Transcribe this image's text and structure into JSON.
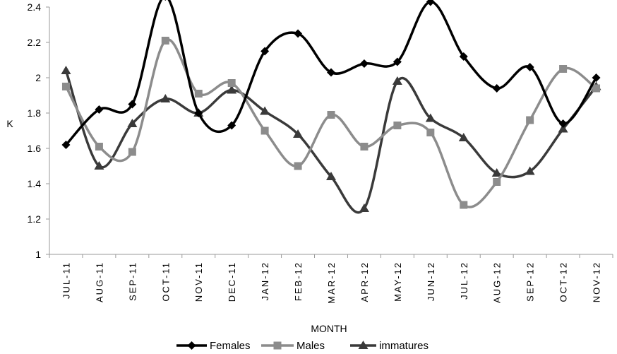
{
  "chart_data": {
    "type": "line",
    "title": "",
    "xlabel": "MONTH",
    "ylabel": "K",
    "ylim": [
      1,
      2.4
    ],
    "yticks": [
      "1",
      "1.2",
      "1.4",
      "1.6",
      "1.8",
      "2",
      "2.2",
      "2.4"
    ],
    "categories": [
      "JUL-11",
      "AUG-11",
      "SEP-11",
      "OCT-11",
      "NOV-11",
      "DEC-11",
      "JAN-12",
      "FEB-12",
      "MAR-12",
      "APR-12",
      "MAY-12",
      "JUN-12",
      "JUL-12",
      "AUG-12",
      "SEP-12",
      "OCT-12",
      "NOV-12"
    ],
    "legend_position": "bottom",
    "grid": false,
    "smooth": true,
    "series": [
      {
        "name": "Females",
        "color": "#000000",
        "marker": "diamond",
        "values": [
          1.62,
          1.82,
          1.85,
          2.46,
          1.8,
          1.73,
          2.15,
          2.25,
          2.03,
          2.08,
          2.09,
          2.43,
          2.12,
          1.94,
          2.06,
          1.74,
          2.0
        ]
      },
      {
        "name": "Males",
        "color": "#8c8c8c",
        "marker": "square",
        "values": [
          1.95,
          1.61,
          1.58,
          2.21,
          1.91,
          1.97,
          1.7,
          1.5,
          1.79,
          1.61,
          1.73,
          1.69,
          1.28,
          1.41,
          1.76,
          2.05,
          1.94
        ]
      },
      {
        "name": "immatures",
        "color": "#3a3a3a",
        "marker": "triangle",
        "values": [
          2.04,
          1.5,
          1.74,
          1.88,
          1.8,
          1.93,
          1.81,
          1.68,
          1.44,
          1.26,
          1.98,
          1.77,
          1.66,
          1.46,
          1.47,
          1.71,
          1.95
        ]
      }
    ]
  }
}
